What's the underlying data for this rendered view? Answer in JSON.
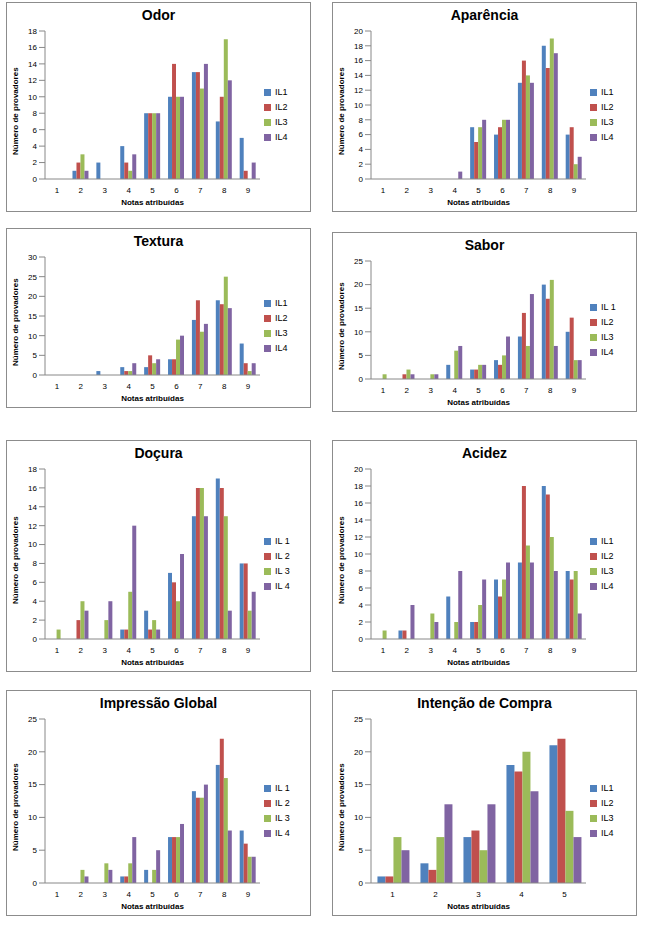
{
  "chart_data": [
    {
      "type": "bar",
      "title": "Odor",
      "x_label": "Notas atribuídas",
      "y_label": "Número de provadores",
      "categories": [
        "1",
        "2",
        "3",
        "4",
        "5",
        "6",
        "7",
        "8",
        "9"
      ],
      "ylim": [
        0,
        18
      ],
      "yticks": [
        0,
        2,
        4,
        6,
        8,
        10,
        12,
        14,
        16,
        18
      ],
      "grid": false,
      "legend": "right",
      "series": [
        {
          "name": "IL1",
          "color": "#4F81BD",
          "values": [
            0,
            1,
            2,
            4,
            8,
            10,
            13,
            7,
            5
          ]
        },
        {
          "name": "IL2",
          "color": "#C0504D",
          "values": [
            0,
            2,
            0,
            2,
            8,
            14,
            13,
            10,
            1
          ]
        },
        {
          "name": "IL3",
          "color": "#9BBB59",
          "values": [
            0,
            3,
            0,
            1,
            8,
            10,
            11,
            17,
            0
          ]
        },
        {
          "name": "IL4",
          "color": "#8064A2",
          "values": [
            0,
            1,
            0,
            3,
            8,
            10,
            14,
            12,
            2
          ]
        }
      ]
    },
    {
      "type": "bar",
      "title": "Aparência",
      "x_label": "Notas atribuídas",
      "y_label": "Número de provadores",
      "categories": [
        "1",
        "2",
        "3",
        "4",
        "5",
        "6",
        "7",
        "8",
        "9"
      ],
      "ylim": [
        0,
        20
      ],
      "yticks": [
        0,
        2,
        4,
        6,
        8,
        10,
        12,
        14,
        16,
        18,
        20
      ],
      "grid": false,
      "legend": "right",
      "series": [
        {
          "name": "IL1",
          "color": "#4F81BD",
          "values": [
            0,
            0,
            0,
            0,
            7,
            6,
            13,
            18,
            6
          ]
        },
        {
          "name": "IL2",
          "color": "#C0504D",
          "values": [
            0,
            0,
            0,
            0,
            5,
            7,
            16,
            15,
            7
          ]
        },
        {
          "name": "IL3",
          "color": "#9BBB59",
          "values": [
            0,
            0,
            0,
            0,
            7,
            8,
            14,
            19,
            2
          ]
        },
        {
          "name": "IL4",
          "color": "#8064A2",
          "values": [
            0,
            0,
            0,
            1,
            8,
            8,
            13,
            17,
            3
          ]
        }
      ]
    },
    {
      "type": "bar",
      "title": "Textura",
      "x_label": "Notas atribuídas",
      "y_label": "Número de provadores",
      "categories": [
        "1",
        "2",
        "3",
        "4",
        "5",
        "6",
        "7",
        "8",
        "9"
      ],
      "ylim": [
        0,
        30
      ],
      "yticks": [
        0,
        5,
        10,
        15,
        20,
        25,
        30
      ],
      "grid": false,
      "legend": "right",
      "series": [
        {
          "name": "IL1",
          "color": "#4F81BD",
          "values": [
            0,
            0,
            1,
            2,
            2,
            4,
            14,
            19,
            8
          ]
        },
        {
          "name": "IL2",
          "color": "#C0504D",
          "values": [
            0,
            0,
            0,
            1,
            5,
            4,
            19,
            18,
            3
          ]
        },
        {
          "name": "IL3",
          "color": "#9BBB59",
          "values": [
            0,
            0,
            0,
            1,
            3,
            9,
            11,
            25,
            1
          ]
        },
        {
          "name": "IL4",
          "color": "#8064A2",
          "values": [
            0,
            0,
            0,
            3,
            4,
            10,
            13,
            17,
            3
          ]
        }
      ]
    },
    {
      "type": "bar",
      "title": "Sabor",
      "x_label": "Notas atribuídas",
      "y_label": "Número de provadores",
      "categories": [
        "1",
        "2",
        "3",
        "4",
        "5",
        "6",
        "7",
        "8",
        "9"
      ],
      "ylim": [
        0,
        25
      ],
      "yticks": [
        0,
        5,
        10,
        15,
        20,
        25
      ],
      "grid": false,
      "legend": "right",
      "series": [
        {
          "name": "IL 1",
          "color": "#4F81BD",
          "values": [
            0,
            0,
            0,
            3,
            2,
            4,
            9,
            20,
            10
          ]
        },
        {
          "name": "IL2",
          "color": "#C0504D",
          "values": [
            0,
            1,
            0,
            0,
            2,
            3,
            14,
            17,
            13
          ]
        },
        {
          "name": "IL3",
          "color": "#9BBB59",
          "values": [
            1,
            2,
            1,
            6,
            3,
            5,
            7,
            21,
            4
          ]
        },
        {
          "name": "IL4",
          "color": "#8064A2",
          "values": [
            0,
            1,
            1,
            7,
            3,
            9,
            18,
            7,
            4
          ]
        }
      ]
    },
    {
      "type": "bar",
      "title": "Doçura",
      "x_label": "Notas atribuídas",
      "y_label": "Número de provadores",
      "categories": [
        "1",
        "2",
        "3",
        "4",
        "5",
        "6",
        "7",
        "8",
        "9"
      ],
      "ylim": [
        0,
        18
      ],
      "yticks": [
        0,
        2,
        4,
        6,
        8,
        10,
        12,
        14,
        16,
        18
      ],
      "grid": false,
      "legend": "right",
      "series": [
        {
          "name": "IL 1",
          "color": "#4F81BD",
          "values": [
            0,
            0,
            0,
            1,
            3,
            7,
            13,
            17,
            8
          ]
        },
        {
          "name": "IL 2",
          "color": "#C0504D",
          "values": [
            0,
            2,
            0,
            1,
            1,
            6,
            16,
            16,
            8
          ]
        },
        {
          "name": "IL 3",
          "color": "#9BBB59",
          "values": [
            1,
            4,
            2,
            5,
            2,
            4,
            16,
            13,
            3
          ]
        },
        {
          "name": "IL 4",
          "color": "#8064A2",
          "values": [
            0,
            3,
            4,
            12,
            1,
            9,
            13,
            3,
            5
          ]
        }
      ]
    },
    {
      "type": "bar",
      "title": "Acidez",
      "x_label": "Notas atribuídas",
      "y_label": "Número de provadores",
      "categories": [
        "1",
        "2",
        "3",
        "4",
        "5",
        "6",
        "7",
        "8",
        "9"
      ],
      "ylim": [
        0,
        20
      ],
      "yticks": [
        0,
        2,
        4,
        6,
        8,
        10,
        12,
        14,
        16,
        18,
        20
      ],
      "grid": false,
      "legend": "right",
      "series": [
        {
          "name": "IL1",
          "color": "#4F81BD",
          "values": [
            0,
            1,
            0,
            5,
            2,
            7,
            9,
            18,
            8
          ]
        },
        {
          "name": "IL2",
          "color": "#C0504D",
          "values": [
            0,
            1,
            0,
            0,
            2,
            5,
            18,
            17,
            7
          ]
        },
        {
          "name": "IL3",
          "color": "#9BBB59",
          "values": [
            1,
            0,
            3,
            2,
            4,
            7,
            11,
            12,
            8
          ]
        },
        {
          "name": "IL4",
          "color": "#8064A2",
          "values": [
            0,
            4,
            2,
            8,
            7,
            9,
            9,
            8,
            3
          ]
        }
      ]
    },
    {
      "type": "bar",
      "title": "Impressão Global",
      "x_label": "Notas atribuídas",
      "y_label": "Número de provadores",
      "categories": [
        "1",
        "2",
        "3",
        "4",
        "5",
        "6",
        "7",
        "8",
        "9"
      ],
      "ylim": [
        0,
        25
      ],
      "yticks": [
        0,
        5,
        10,
        15,
        20,
        25
      ],
      "grid": false,
      "legend": "right",
      "series": [
        {
          "name": "IL 1",
          "color": "#4F81BD",
          "values": [
            0,
            0,
            0,
            1,
            2,
            7,
            14,
            18,
            8
          ]
        },
        {
          "name": "IL 2",
          "color": "#C0504D",
          "values": [
            0,
            0,
            0,
            1,
            0,
            7,
            13,
            22,
            6
          ]
        },
        {
          "name": "IL 3",
          "color": "#9BBB59",
          "values": [
            0,
            2,
            3,
            3,
            2,
            7,
            13,
            16,
            4
          ]
        },
        {
          "name": "IL 4",
          "color": "#8064A2",
          "values": [
            0,
            1,
            2,
            7,
            5,
            9,
            15,
            8,
            4
          ]
        }
      ]
    },
    {
      "type": "bar",
      "title": "Intenção de Compra",
      "x_label": "Notas atribuídas",
      "y_label": "Número de provadores",
      "categories": [
        "1",
        "2",
        "3",
        "4",
        "5"
      ],
      "ylim": [
        0,
        25
      ],
      "yticks": [
        0,
        5,
        10,
        15,
        20,
        25
      ],
      "grid": false,
      "legend": "right",
      "series": [
        {
          "name": "IL1",
          "color": "#4F81BD",
          "values": [
            1,
            3,
            7,
            18,
            21
          ]
        },
        {
          "name": "IL2",
          "color": "#C0504D",
          "values": [
            1,
            2,
            8,
            17,
            22
          ]
        },
        {
          "name": "IL3",
          "color": "#9BBB59",
          "values": [
            7,
            7,
            5,
            20,
            11
          ]
        },
        {
          "name": "IL4",
          "color": "#8064A2",
          "values": [
            5,
            12,
            12,
            14,
            7
          ]
        }
      ]
    }
  ]
}
